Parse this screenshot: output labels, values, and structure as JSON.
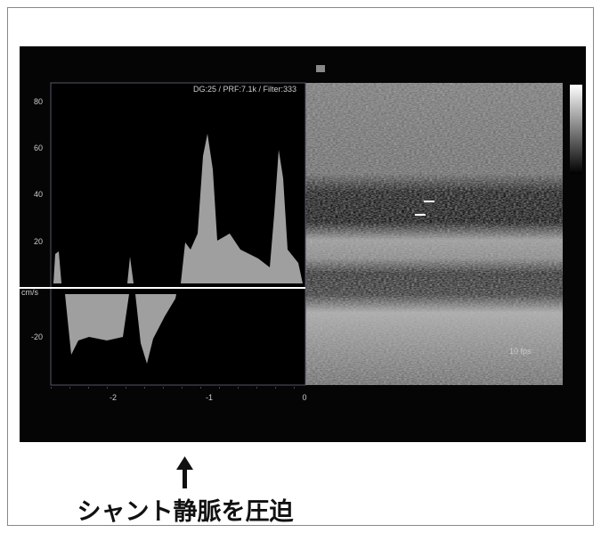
{
  "header": {
    "settings": "DG:25 /   PRF:7.1k   / Filter:333"
  },
  "doppler": {
    "y_labels": [
      "80",
      "60",
      "40",
      "20",
      "cm/s",
      "-20"
    ],
    "x_labels": [
      "-2",
      "-1",
      "0"
    ]
  },
  "image": {
    "frame_rate": "10 fps"
  },
  "caption": "シャント静脈を圧迫"
}
